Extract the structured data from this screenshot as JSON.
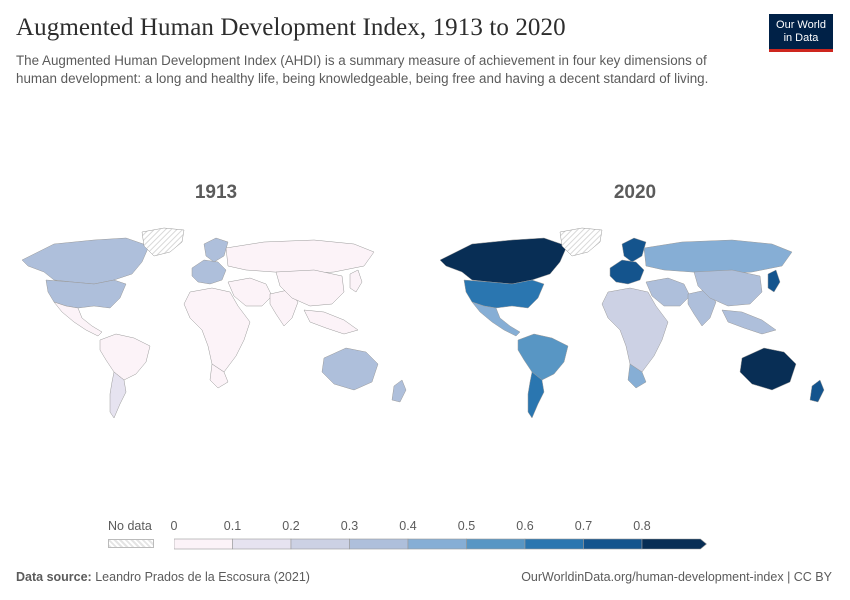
{
  "header": {
    "title": "Augmented Human Development Index, 1913 to 2020",
    "subtitle": "The Augmented Human Development Index (AHDI) is a summary measure of achievement in four key dimensions of human development: a long and healthy life, being knowledgeable, being free and having a decent standard of living.",
    "logo_line1": "Our World",
    "logo_line2": "in Data"
  },
  "maps": [
    {
      "year": "1913"
    },
    {
      "year": "2020"
    }
  ],
  "legend": {
    "no_data_label": "No data",
    "ticks": [
      "0",
      "0.1",
      "0.2",
      "0.3",
      "0.4",
      "0.5",
      "0.6",
      "0.7",
      "0.8"
    ],
    "colors": [
      "#fcf3f8",
      "#e6e3f0",
      "#ccd1e4",
      "#aebfdb",
      "#86aed5",
      "#5896c4",
      "#2a76b0",
      "#14548d",
      "#082e55"
    ]
  },
  "footer": {
    "source_label": "Data source:",
    "source_value": "Leandro Prados de la Escosura (2021)",
    "url_license": "OurWorldinData.org/human-development-index | CC BY"
  },
  "map_data": {
    "regions": [
      {
        "name": "North America",
        "y1913": 0.35,
        "y2020": 0.8
      },
      {
        "name": "United States",
        "y1913": 0.38,
        "y2020": 0.65
      },
      {
        "name": "Mexico / Central America",
        "y1913": 0.05,
        "y2020": 0.45
      },
      {
        "name": "South America",
        "y1913": 0.08,
        "y2020": 0.5
      },
      {
        "name": "Southern Cone",
        "y1913": 0.15,
        "y2020": 0.6
      },
      {
        "name": "Western Europe",
        "y1913": 0.35,
        "y2020": 0.7
      },
      {
        "name": "Scandinavia",
        "y1913": 0.3,
        "y2020": 0.75
      },
      {
        "name": "Russia",
        "y1913": 0.02,
        "y2020": 0.4
      },
      {
        "name": "Middle East",
        "y1913": 0.02,
        "y2020": 0.35
      },
      {
        "name": "Africa",
        "y1913": 0.01,
        "y2020": 0.2
      },
      {
        "name": "South Africa",
        "y1913": 0.05,
        "y2020": 0.4
      },
      {
        "name": "South Asia",
        "y1913": 0.01,
        "y2020": 0.3
      },
      {
        "name": "China",
        "y1913": 0.01,
        "y2020": 0.3
      },
      {
        "name": "Japan",
        "y1913": 0.05,
        "y2020": 0.75
      },
      {
        "name": "Southeast Asia",
        "y1913": 0.02,
        "y2020": 0.35
      },
      {
        "name": "Australia",
        "y1913": 0.38,
        "y2020": 0.8
      },
      {
        "name": "New Zealand",
        "y1913": 0.35,
        "y2020": 0.75
      },
      {
        "name": "Greenland",
        "y1913": null,
        "y2020": null
      }
    ]
  }
}
